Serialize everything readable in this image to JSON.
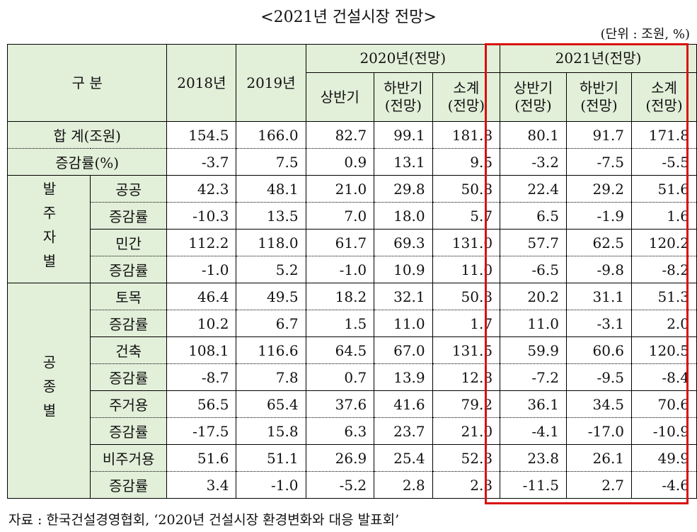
{
  "title": "<2021년 건설시장 전망>",
  "unit": "(단위 : 조원, %)",
  "header": {
    "category": "구 분",
    "y2018": "2018년",
    "y2019": "2019년",
    "y2020": "2020년(전망)",
    "y2021": "2021년(전망)",
    "h1_2020": "상반기",
    "h2_2020": "하반기\n(전망)",
    "sub_2020": "소계\n(전망)",
    "h1_2021": "상반기\n(전망)",
    "h2_2021": "하반기\n(전망)",
    "sub_2021": "소계\n(전망)"
  },
  "groups": {
    "orderer": "발주자별",
    "work_type": "공종별"
  },
  "rows": [
    {
      "label": "합 계(조원)",
      "values": [
        "154.5",
        "166.0",
        "82.7",
        "99.1",
        "181.8",
        "80.1",
        "91.7",
        "171.8"
      ]
    },
    {
      "label": "증감률(%)",
      "values": [
        "-3.7",
        "7.5",
        "0.9",
        "13.1",
        "9.5",
        "-3.2",
        "-7.5",
        "-5.5"
      ]
    },
    {
      "label": "공공",
      "values": [
        "42.3",
        "48.1",
        "21.0",
        "29.8",
        "50.8",
        "22.4",
        "29.2",
        "51.6"
      ]
    },
    {
      "label": "증감률",
      "values": [
        "-10.3",
        "13.5",
        "7.0",
        "18.0",
        "5.7",
        "6.5",
        "-1.9",
        "1.6"
      ]
    },
    {
      "label": "민간",
      "values": [
        "112.2",
        "118.0",
        "61.7",
        "69.3",
        "131.0",
        "57.7",
        "62.5",
        "120.2"
      ]
    },
    {
      "label": "증감률",
      "values": [
        "-1.0",
        "5.2",
        "-1.0",
        "10.9",
        "11.0",
        "-6.5",
        "-9.8",
        "-8.2"
      ]
    },
    {
      "label": "토목",
      "values": [
        "46.4",
        "49.5",
        "18.2",
        "32.1",
        "50.3",
        "20.2",
        "31.1",
        "51.3"
      ]
    },
    {
      "label": "증감률",
      "values": [
        "10.2",
        "6.7",
        "1.5",
        "11.0",
        "1.7",
        "11.0",
        "-3.1",
        "2.0"
      ]
    },
    {
      "label": "건축",
      "values": [
        "108.1",
        "116.6",
        "64.5",
        "67.0",
        "131.5",
        "59.9",
        "60.6",
        "120.5"
      ]
    },
    {
      "label": "증감률",
      "values": [
        "-8.7",
        "7.8",
        "0.7",
        "13.9",
        "12.8",
        "-7.2",
        "-9.5",
        "-8.4"
      ]
    },
    {
      "label": "주거용",
      "values": [
        "56.5",
        "65.4",
        "37.6",
        "41.6",
        "79.2",
        "36.1",
        "34.5",
        "70.6"
      ]
    },
    {
      "label": "증감률",
      "values": [
        "-17.5",
        "15.8",
        "6.3",
        "23.7",
        "21.0",
        "-4.1",
        "-17.0",
        "-10.9"
      ]
    },
    {
      "label": "비주거용",
      "values": [
        "51.6",
        "51.1",
        "26.9",
        "25.4",
        "52.3",
        "23.8",
        "26.1",
        "49.9"
      ]
    },
    {
      "label": "증감률",
      "values": [
        "3.4",
        "-1.0",
        "-5.2",
        "2.8",
        "2.3",
        "-11.5",
        "2.7",
        "-4.6"
      ]
    }
  ],
  "highlight_color": "#d90f0f",
  "header_bg": "#e2efd9",
  "source": "자료 : 한국건설경영협회, ‘2020년 건설시장 환경변화와 대응 발표회’"
}
